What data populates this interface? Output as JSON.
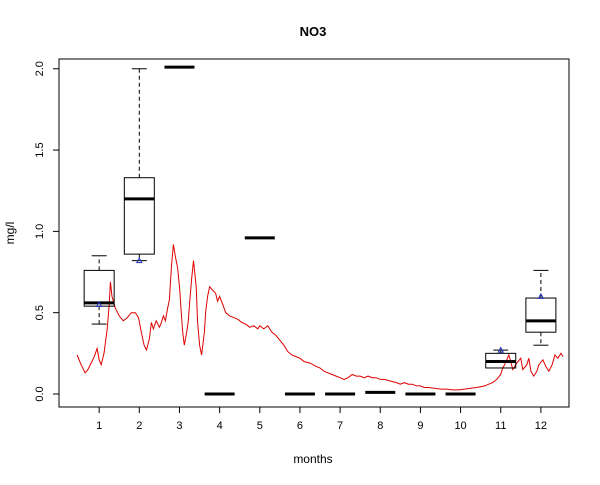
{
  "chart_data": {
    "type": "boxplot",
    "title": "NO3",
    "xlabel": "months",
    "ylabel": "mg/l",
    "xlim": [
      0,
      12.7
    ],
    "ylim": [
      -0.08,
      2.06
    ],
    "x_ticks": [
      "1",
      "2",
      "3",
      "4",
      "5",
      "6",
      "7",
      "8",
      "9",
      "10",
      "11",
      "12"
    ],
    "y_ticks": [
      "0.0",
      "0.5",
      "1.0",
      "1.5",
      "2.0"
    ],
    "y_tick_values": [
      0,
      0.5,
      1.0,
      1.5,
      2.0
    ],
    "grid": false,
    "boxes": [
      {
        "month": 1,
        "whisker_low": 0.43,
        "q1": 0.54,
        "median": 0.56,
        "q3": 0.76,
        "whisker_high": 0.85,
        "mean": 0.55
      },
      {
        "month": 2,
        "whisker_low": 0.82,
        "q1": 0.86,
        "median": 1.2,
        "q3": 1.33,
        "whisker_high": 2.0,
        "mean": 0.82
      },
      {
        "month": 3,
        "whisker_low": 2.01,
        "q1": 2.01,
        "median": 2.01,
        "q3": 2.01,
        "whisker_high": 2.01,
        "mean": null
      },
      {
        "month": 4,
        "whisker_low": 0.0,
        "q1": 0.0,
        "median": 0.0,
        "q3": 0.0,
        "whisker_high": 0.0,
        "mean": null
      },
      {
        "month": 5,
        "whisker_low": 0.96,
        "q1": 0.96,
        "median": 0.96,
        "q3": 0.96,
        "whisker_high": 0.96,
        "mean": null
      },
      {
        "month": 6,
        "whisker_low": 0.0,
        "q1": 0.0,
        "median": 0.0,
        "q3": 0.0,
        "whisker_high": 0.0,
        "mean": null
      },
      {
        "month": 7,
        "whisker_low": 0.0,
        "q1": 0.0,
        "median": 0.0,
        "q3": 0.0,
        "whisker_high": 0.0,
        "mean": null
      },
      {
        "month": 8,
        "whisker_low": 0.01,
        "q1": 0.01,
        "median": 0.01,
        "q3": 0.01,
        "whisker_high": 0.01,
        "mean": null
      },
      {
        "month": 9,
        "whisker_low": 0.0,
        "q1": 0.0,
        "median": 0.0,
        "q3": 0.0,
        "whisker_high": 0.0,
        "mean": null
      },
      {
        "month": 10,
        "whisker_low": 0.0,
        "q1": 0.0,
        "median": 0.0,
        "q3": 0.0,
        "whisker_high": 0.0,
        "mean": null
      },
      {
        "month": 11,
        "whisker_low": 0.16,
        "q1": 0.16,
        "median": 0.2,
        "q3": 0.25,
        "whisker_high": 0.27,
        "mean": 0.27
      },
      {
        "month": 12,
        "whisker_low": 0.3,
        "q1": 0.38,
        "median": 0.45,
        "q3": 0.59,
        "whisker_high": 0.76,
        "mean": 0.6
      }
    ],
    "line_series": {
      "color": "#dd0000",
      "points": [
        [
          0.45,
          0.24
        ],
        [
          0.55,
          0.18
        ],
        [
          0.65,
          0.13
        ],
        [
          0.72,
          0.15
        ],
        [
          0.8,
          0.19
        ],
        [
          0.88,
          0.23
        ],
        [
          0.95,
          0.28
        ],
        [
          1.0,
          0.21
        ],
        [
          1.05,
          0.18
        ],
        [
          1.12,
          0.25
        ],
        [
          1.2,
          0.4
        ],
        [
          1.25,
          0.55
        ],
        [
          1.28,
          0.69
        ],
        [
          1.32,
          0.6
        ],
        [
          1.4,
          0.53
        ],
        [
          1.5,
          0.48
        ],
        [
          1.6,
          0.45
        ],
        [
          1.7,
          0.47
        ],
        [
          1.8,
          0.5
        ],
        [
          1.9,
          0.5
        ],
        [
          1.98,
          0.47
        ],
        [
          2.05,
          0.38
        ],
        [
          2.12,
          0.3
        ],
        [
          2.18,
          0.27
        ],
        [
          2.25,
          0.34
        ],
        [
          2.3,
          0.44
        ],
        [
          2.35,
          0.4
        ],
        [
          2.42,
          0.45
        ],
        [
          2.5,
          0.41
        ],
        [
          2.55,
          0.44
        ],
        [
          2.6,
          0.48
        ],
        [
          2.65,
          0.45
        ],
        [
          2.7,
          0.52
        ],
        [
          2.75,
          0.58
        ],
        [
          2.8,
          0.78
        ],
        [
          2.85,
          0.92
        ],
        [
          2.9,
          0.84
        ],
        [
          2.95,
          0.78
        ],
        [
          3.0,
          0.66
        ],
        [
          3.05,
          0.48
        ],
        [
          3.08,
          0.38
        ],
        [
          3.12,
          0.3
        ],
        [
          3.18,
          0.38
        ],
        [
          3.22,
          0.45
        ],
        [
          3.25,
          0.55
        ],
        [
          3.3,
          0.7
        ],
        [
          3.35,
          0.82
        ],
        [
          3.38,
          0.75
        ],
        [
          3.42,
          0.65
        ],
        [
          3.45,
          0.45
        ],
        [
          3.5,
          0.3
        ],
        [
          3.55,
          0.24
        ],
        [
          3.58,
          0.3
        ],
        [
          3.62,
          0.38
        ],
        [
          3.65,
          0.5
        ],
        [
          3.7,
          0.6
        ],
        [
          3.75,
          0.66
        ],
        [
          3.82,
          0.64
        ],
        [
          3.9,
          0.62
        ],
        [
          3.95,
          0.57
        ],
        [
          4.0,
          0.6
        ],
        [
          4.08,
          0.55
        ],
        [
          4.15,
          0.5
        ],
        [
          4.25,
          0.48
        ],
        [
          4.35,
          0.47
        ],
        [
          4.45,
          0.46
        ],
        [
          4.55,
          0.44
        ],
        [
          4.65,
          0.43
        ],
        [
          4.75,
          0.41
        ],
        [
          4.85,
          0.42
        ],
        [
          4.95,
          0.4
        ],
        [
          5.0,
          0.42
        ],
        [
          5.1,
          0.4
        ],
        [
          5.2,
          0.42
        ],
        [
          5.3,
          0.38
        ],
        [
          5.4,
          0.36
        ],
        [
          5.5,
          0.33
        ],
        [
          5.6,
          0.3
        ],
        [
          5.7,
          0.26
        ],
        [
          5.8,
          0.24
        ],
        [
          5.9,
          0.23
        ],
        [
          6.0,
          0.22
        ],
        [
          6.1,
          0.2
        ],
        [
          6.25,
          0.19
        ],
        [
          6.4,
          0.17
        ],
        [
          6.5,
          0.16
        ],
        [
          6.6,
          0.14
        ],
        [
          6.7,
          0.13
        ],
        [
          6.8,
          0.12
        ],
        [
          6.9,
          0.11
        ],
        [
          7.0,
          0.1
        ],
        [
          7.1,
          0.09
        ],
        [
          7.2,
          0.1
        ],
        [
          7.3,
          0.12
        ],
        [
          7.4,
          0.11
        ],
        [
          7.5,
          0.11
        ],
        [
          7.6,
          0.1
        ],
        [
          7.7,
          0.11
        ],
        [
          7.8,
          0.1
        ],
        [
          7.9,
          0.1
        ],
        [
          8.0,
          0.09
        ],
        [
          8.1,
          0.09
        ],
        [
          8.25,
          0.08
        ],
        [
          8.4,
          0.07
        ],
        [
          8.5,
          0.06
        ],
        [
          8.6,
          0.07
        ],
        [
          8.7,
          0.06
        ],
        [
          8.8,
          0.06
        ],
        [
          8.9,
          0.05
        ],
        [
          9.0,
          0.05
        ],
        [
          9.1,
          0.04
        ],
        [
          9.2,
          0.04
        ],
        [
          9.35,
          0.035
        ],
        [
          9.5,
          0.03
        ],
        [
          9.65,
          0.03
        ],
        [
          9.8,
          0.025
        ],
        [
          9.95,
          0.025
        ],
        [
          10.1,
          0.03
        ],
        [
          10.25,
          0.035
        ],
        [
          10.4,
          0.04
        ],
        [
          10.5,
          0.045
        ],
        [
          10.6,
          0.05
        ],
        [
          10.7,
          0.06
        ],
        [
          10.8,
          0.07
        ],
        [
          10.9,
          0.09
        ],
        [
          11.0,
          0.12
        ],
        [
          11.05,
          0.16
        ],
        [
          11.1,
          0.18
        ],
        [
          11.15,
          0.21
        ],
        [
          11.2,
          0.24
        ],
        [
          11.25,
          0.2
        ],
        [
          11.3,
          0.15
        ],
        [
          11.4,
          0.19
        ],
        [
          11.5,
          0.22
        ],
        [
          11.55,
          0.15
        ],
        [
          11.65,
          0.18
        ],
        [
          11.7,
          0.22
        ],
        [
          11.75,
          0.14
        ],
        [
          11.82,
          0.11
        ],
        [
          11.9,
          0.14
        ],
        [
          11.95,
          0.18
        ],
        [
          12.05,
          0.21
        ],
        [
          12.12,
          0.17
        ],
        [
          12.2,
          0.14
        ],
        [
          12.28,
          0.18
        ],
        [
          12.35,
          0.24
        ],
        [
          12.42,
          0.22
        ],
        [
          12.5,
          0.25
        ],
        [
          12.55,
          0.23
        ]
      ]
    }
  }
}
